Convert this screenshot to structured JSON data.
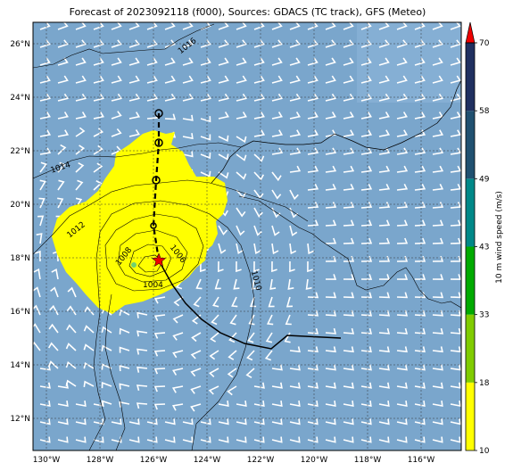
{
  "title": "Forecast of 2023092118 (f000), Sources: GDACS (TC track), GFS (Meteo)",
  "colorbar": {
    "label": "10 m wind speed (m/s)",
    "ticks": [
      "10",
      "18",
      "33",
      "43",
      "49",
      "58",
      "70"
    ],
    "colors": [
      "#ffff00",
      "#80cc00",
      "#00aa00",
      "#008888",
      "#205070",
      "#203060",
      "#ee0000"
    ]
  },
  "map": {
    "lon_range": [
      -130.5,
      -114.5
    ],
    "lat_range": [
      10.8,
      26.8
    ],
    "ocean_color": "#7aa6cc",
    "x_ticks": [
      {
        "lon": -130,
        "label": "130°W"
      },
      {
        "lon": -128,
        "label": "128°W"
      },
      {
        "lon": -126,
        "label": "126°W"
      },
      {
        "lon": -124,
        "label": "124°W"
      },
      {
        "lon": -122,
        "label": "122°W"
      },
      {
        "lon": -120,
        "label": "120°W"
      },
      {
        "lon": -118,
        "label": "118°W"
      },
      {
        "lon": -116,
        "label": "116°W"
      }
    ],
    "y_ticks": [
      {
        "lat": 26,
        "label": "26°N"
      },
      {
        "lat": 24,
        "label": "24°N"
      },
      {
        "lat": 22,
        "label": "22°N"
      },
      {
        "lat": 20,
        "label": "20°N"
      },
      {
        "lat": 18,
        "label": "18°N"
      },
      {
        "lat": 16,
        "label": "16°N"
      },
      {
        "lat": 14,
        "label": "14°N"
      },
      {
        "lat": 12,
        "label": "12°N"
      }
    ],
    "contour_labels": [
      "1016",
      "1014",
      "1012",
      "1008",
      "1006",
      "1004",
      "1010"
    ],
    "forecast_track": [
      [
        -125.8,
        23.4
      ],
      [
        -125.8,
        22.3
      ],
      [
        -125.9,
        20.9
      ],
      [
        -126.0,
        19.2
      ],
      [
        -125.8,
        17.9
      ]
    ],
    "past_track": [
      [
        -125.8,
        17.9
      ],
      [
        -125.3,
        17.0
      ],
      [
        -124.8,
        16.3
      ],
      [
        -124.2,
        15.7
      ],
      [
        -123.5,
        15.2
      ],
      [
        -122.6,
        14.8
      ],
      [
        -121.6,
        14.6
      ],
      [
        -121.0,
        15.1
      ],
      [
        -119.0,
        15.0
      ]
    ],
    "current_position": [
      -125.8,
      17.9
    ]
  }
}
